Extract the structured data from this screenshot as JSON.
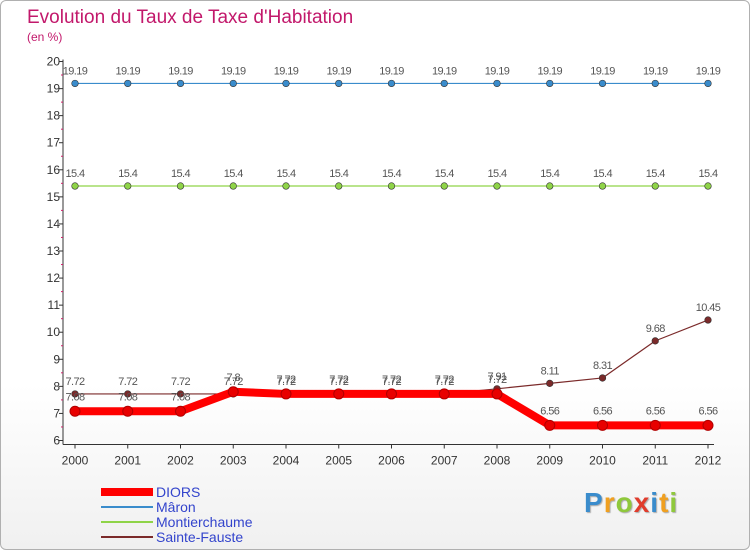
{
  "header": {
    "title": "Evolution du Taux de Taxe d'Habitation",
    "subtitle": "(en %)"
  },
  "chart_data": {
    "type": "line",
    "title": "Evolution du Taux de Taxe d'Habitation",
    "ylabel": "(en %)",
    "xlabel": "",
    "x": [
      "2000",
      "2001",
      "2002",
      "2003",
      "2004",
      "2005",
      "2006",
      "2007",
      "2008",
      "2009",
      "2010",
      "2011",
      "2012"
    ],
    "ylim": [
      6,
      20
    ],
    "yticks": [
      6,
      7,
      8,
      9,
      10,
      11,
      12,
      13,
      14,
      15,
      16,
      17,
      18,
      19,
      20
    ],
    "grid": false,
    "legend_position": "bottom-left",
    "series": [
      {
        "name": "DIORS",
        "color": "#ff0000",
        "values": [
          7.08,
          7.08,
          7.08,
          7.8,
          7.72,
          7.72,
          7.72,
          7.72,
          7.72,
          6.56,
          6.56,
          6.56,
          6.56
        ],
        "labels": [
          "7.08",
          "7.08",
          "7.08",
          "7.8",
          "7.72",
          "7.72",
          "7.72",
          "7.72",
          "7.72",
          "6.56",
          "6.56",
          "6.56",
          "6.56"
        ]
      },
      {
        "name": "Mâron",
        "color": "#3a8ccc",
        "values": [
          19.19,
          19.19,
          19.19,
          19.19,
          19.19,
          19.19,
          19.19,
          19.19,
          19.19,
          19.19,
          19.19,
          19.19,
          19.19
        ],
        "labels": [
          "19.19",
          "19.19",
          "19.19",
          "19.19",
          "19.19",
          "19.19",
          "19.19",
          "19.19",
          "19.19",
          "19.19",
          "19.19",
          "19.19",
          "19.19"
        ]
      },
      {
        "name": "Montierchaume",
        "color": "#8fd448",
        "values": [
          15.4,
          15.4,
          15.4,
          15.4,
          15.4,
          15.4,
          15.4,
          15.4,
          15.4,
          15.4,
          15.4,
          15.4,
          15.4
        ],
        "labels": [
          "15.4",
          "15.4",
          "15.4",
          "15.4",
          "15.4",
          "15.4",
          "15.4",
          "15.4",
          "15.4",
          "15.4",
          "15.4",
          "15.4",
          "15.4"
        ]
      },
      {
        "name": "Sainte-Fauste",
        "color": "#7b2a2a",
        "values": [
          7.72,
          7.72,
          7.72,
          7.72,
          7.72,
          7.72,
          7.72,
          7.72,
          7.91,
          8.11,
          8.31,
          9.68,
          10.45
        ],
        "labels": [
          "7.72",
          "7.72",
          "7.72",
          "7.72",
          "7.72",
          "7.72",
          "7.72",
          "7.72",
          "7.91",
          "8.11",
          "8.31",
          "9.68",
          "10.45"
        ]
      }
    ]
  },
  "logo": {
    "letters": [
      "P",
      "r",
      "o",
      "x",
      "i",
      "t",
      "i"
    ]
  }
}
